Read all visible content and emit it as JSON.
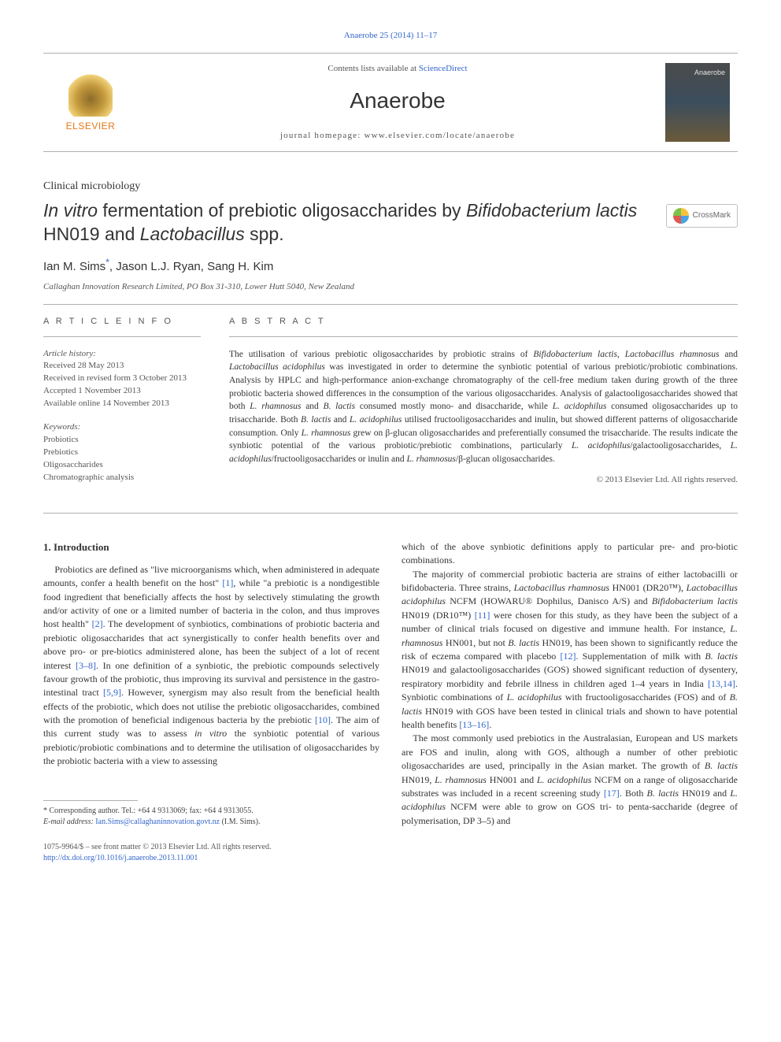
{
  "topbar": {
    "citation": "Anaerobe 25 (2014) 11–17",
    "citation_href": "#"
  },
  "header": {
    "elsevier_label": "ELSEVIER",
    "contents_prefix": "Contents lists available at ",
    "contents_link": "ScienceDirect",
    "journal_name": "Anaerobe",
    "homepage_label": "journal homepage: www.elsevier.com/locate/anaerobe",
    "cover_label": "Anaerobe"
  },
  "section_label": "Clinical microbiology",
  "title": {
    "prefix_italic": "In vitro",
    "middle": " fermentation of prebiotic oligosaccharides by ",
    "species1": "Bifidobacterium lactis",
    "mid2": " HN019 and ",
    "species2": "Lactobacillus",
    "suffix": " spp."
  },
  "crossmark_label": "CrossMark",
  "authors": {
    "a1": "Ian M. Sims",
    "a2": "Jason L.J. Ryan",
    "a3": "Sang H. Kim",
    "corr_symbol": "*"
  },
  "affiliation": "Callaghan Innovation Research Limited, PO Box 31-310, Lower Hutt 5040, New Zealand",
  "meta": {
    "info_heading": "A R T I C L E   I N F O",
    "abstract_heading": "A B S T R A C T",
    "history_label": "Article history:",
    "history": {
      "received": "Received 28 May 2013",
      "revised": "Received in revised form 3 October 2013",
      "accepted": "Accepted 1 November 2013",
      "online": "Available online 14 November 2013"
    },
    "keywords_label": "Keywords:",
    "keywords": [
      "Probiotics",
      "Prebiotics",
      "Oligosaccharides",
      "Chromatographic analysis"
    ]
  },
  "abstract": {
    "text_parts": [
      "The utilisation of various prebiotic oligosaccharides by probiotic strains of ",
      "Bifidobacterium lactis",
      ", ",
      "Lactobacillus rhamnosus",
      " and ",
      "Lactobacillus acidophilus",
      " was investigated in order to determine the synbiotic potential of various prebiotic/probiotic combinations. Analysis by HPLC and high-performance anion-exchange chromatography of the cell-free medium taken during growth of the three probiotic bacteria showed differences in the consumption of the various oligosaccharides. Analysis of galactooligosaccharides showed that both ",
      "L. rhamnosus",
      " and ",
      "B. lactis",
      " consumed mostly mono- and disaccharide, while ",
      "L. acidophilus",
      " consumed oligosaccharides up to trisaccharide. Both ",
      "B. lactis",
      " and ",
      "L. acidophilus",
      " utilised fructooligosaccharides and inulin, but showed different patterns of oligosaccharide consumption. Only ",
      "L. rhamnosus",
      " grew on β-glucan oligosaccharides and preferentially consumed the trisaccharide. The results indicate the synbiotic potential of the various probiotic/prebiotic combinations, particularly ",
      "L. acidophilus",
      "/galactooligosaccharides, ",
      "L. acidophilus",
      "/fructooligosaccharides or inulin and ",
      "L. rhamnosus",
      "/β-glucan oligosaccharides."
    ],
    "copyright": "© 2013 Elsevier Ltd. All rights reserved."
  },
  "body": {
    "heading": "1. Introduction",
    "col1": {
      "p1a": "Probiotics are defined as \"live microorganisms which, when administered in adequate amounts, confer a health benefit on the host\" ",
      "r1": "[1]",
      "p1b": ", while \"a prebiotic is a nondigestible food ingredient that beneficially affects the host by selectively stimulating the growth and/or activity of one or a limited number of bacteria in the colon, and thus improves host health\" ",
      "r2": "[2]",
      "p1c": ". The development of synbiotics, combinations of probiotic bacteria and prebiotic oligosaccharides that act synergistically to confer health benefits over and above pro- or pre-biotics administered alone, has been the subject of a lot of recent interest ",
      "r3": "[3–8]",
      "p1d": ". In one definition of a synbiotic, the prebiotic compounds selectively favour growth of the probiotic, thus improving its survival and persistence in the gastro-intestinal tract ",
      "r4": "[5,9]",
      "p1e": ". However, synergism may also result from the beneficial health effects of the probiotic, which does not utilise the prebiotic oligosaccharides, combined with the promotion of beneficial indigenous bacteria by the prebiotic ",
      "r5": "[10]",
      "p1f": ". The aim of this current study was to assess ",
      "it1": "in vitro",
      "p1g": " the synbiotic potential of various prebiotic/probiotic combinations and to determine the utilisation of oligosaccharides by the probiotic bacteria with a view to assessing"
    },
    "col2": {
      "p1": "which of the above synbiotic definitions apply to particular pre- and pro-biotic combinations.",
      "p2a": "The majority of commercial probiotic bacteria are strains of either lactobacilli or bifidobacteria. Three strains, ",
      "it_lr": "Lactobacillus rhamnosus",
      "p2b": " HN001 (DR20™), ",
      "it_la": "Lactobacillus acidophilus",
      "p2c": " NCFM (HOWARU® Dophilus, Danisco A/S) and ",
      "it_bl": "Bifidobacterium lactis",
      "p2d": " HN019 (DR10™) ",
      "r6": "[11]",
      "p2e": " were chosen for this study, as they have been the subject of a number of clinical trials focused on digestive and immune health. For instance, ",
      "it_lr2": "L. rhamnosus",
      "p2f": " HN001, but not ",
      "it_bl2": "B. lactis",
      "p2g": " HN019, has been shown to significantly reduce the risk of eczema compared with placebo ",
      "r7": "[12]",
      "p2h": ". Supplementation of milk with ",
      "it_bl3": "B. lactis",
      "p2i": " HN019 and galactooligosaccharides (GOS) showed significant reduction of dysentery, respiratory morbidity and febrile illness in children aged 1–4 years in India ",
      "r8": "[13,14]",
      "p2j": ". Synbiotic combinations of ",
      "it_la2": "L. acidophilus",
      "p2k": " with fructooligosaccharides (FOS) and of ",
      "it_bl4": "B. lactis",
      "p2l": " HN019 with GOS have been tested in clinical trials and shown to have potential health benefits ",
      "r9": "[13–16]",
      "p2m": ".",
      "p3a": "The most commonly used prebiotics in the Australasian, European and US markets are FOS and inulin, along with GOS, although a number of other prebiotic oligosaccharides are used, principally in the Asian market. The growth of ",
      "it_bl5": "B. lactis",
      "p3b": " HN019, ",
      "it_lr3": "L. rhamnosus",
      "p3c": " HN001 and ",
      "it_la3": "L. acidophilus",
      "p3d": " NCFM on a range of oligosaccharide substrates was included in a recent screening study ",
      "r10": "[17]",
      "p3e": ". Both ",
      "it_bl6": "B. lactis",
      "p3f": " HN019 and ",
      "it_la4": "L. acidophilus",
      "p3g": " NCFM were able to grow on GOS tri- to penta-saccharide (degree of polymerisation, DP 3–5) and"
    }
  },
  "footnote": {
    "corr": "* Corresponding author. Tel.: +64 4 9313069; fax: +64 4 9313055.",
    "email_label": "E-mail address: ",
    "email": "Ian.Sims@callaghaninnovation.govt.nz",
    "email_suffix": " (I.M. Sims)."
  },
  "footer": {
    "line1": "1075-9964/$ – see front matter © 2013 Elsevier Ltd. All rights reserved.",
    "doi": "http://dx.doi.org/10.1016/j.anaerobe.2013.11.001"
  },
  "colors": {
    "link": "#3366cc",
    "text": "#333333",
    "muted": "#555555",
    "rule": "#b0b0b0",
    "elsevier": "#e67817"
  }
}
